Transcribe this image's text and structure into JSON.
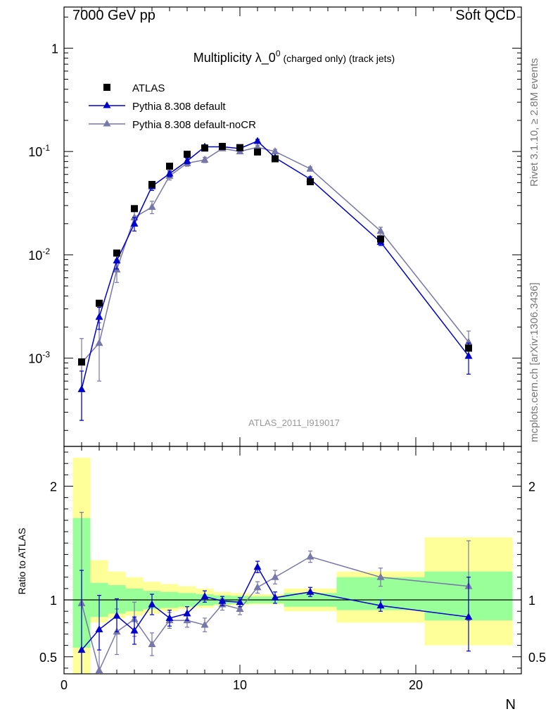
{
  "header": {
    "left": "7000 GeV pp",
    "right": "Soft QCD"
  },
  "side": {
    "top": "Rivet 3.1.10, ≥ 2.8M events",
    "bottom": "mcplots.cern.ch [arXiv:1306.3436]"
  },
  "chart_data": [
    {
      "type": "scatter",
      "title_main": "Multiplicity λ_0",
      "title_sup": "0",
      "title_small": "(charged only) (track jets)",
      "watermark": "ATLAS_2011_I919017",
      "xlabel": "N",
      "ylabel": "",
      "y_scale": "log",
      "xlim": [
        0,
        26
      ],
      "ylim": [
        0.00014,
        2.5
      ],
      "y_tick_labels": [
        "10^-3",
        "10^-2",
        "10^-1",
        "1"
      ],
      "legend_position": "top-left",
      "series": [
        {
          "name": "ATLAS",
          "color": "#000000",
          "marker": "square",
          "x": [
            1,
            2,
            3,
            4,
            5,
            6,
            7,
            8,
            9,
            10,
            11,
            12,
            14,
            18,
            23
          ],
          "y": [
            0.00092,
            0.0034,
            0.0104,
            0.028,
            0.048,
            0.072,
            0.094,
            0.108,
            0.112,
            0.109,
            0.099,
            0.085,
            0.051,
            0.0142,
            0.00125
          ]
        },
        {
          "name": "Pythia 8.308 default",
          "color": "#0000cc",
          "marker": "triangle",
          "x": [
            1,
            2,
            3,
            4,
            5,
            6,
            7,
            8,
            9,
            10,
            11,
            12,
            14,
            18,
            23
          ],
          "y": [
            0.0005,
            0.0025,
            0.0088,
            0.02,
            0.046,
            0.061,
            0.081,
            0.111,
            0.111,
            0.107,
            0.126,
            0.087,
            0.054,
            0.0133,
            0.00105
          ],
          "err": [
            0.00025,
            0.0006,
            0.0015,
            0.003,
            0.004,
            0.004,
            0.005,
            0.005,
            0.004,
            0.004,
            0.005,
            0.004,
            0.003,
            0.001,
            0.00035
          ]
        },
        {
          "name": "Pythia 8.308 default-noCR",
          "color": "#7777aa",
          "marker": "triangle",
          "x": [
            1,
            2,
            3,
            4,
            5,
            6,
            7,
            8,
            9,
            10,
            11,
            12,
            14,
            18,
            23
          ],
          "y": [
            0.0009,
            0.0014,
            0.0072,
            0.023,
            0.029,
            0.058,
            0.077,
            0.083,
            0.107,
            0.1,
            0.11,
            0.1,
            0.068,
            0.017,
            0.00143
          ],
          "err": [
            0.00065,
            0.0008,
            0.0018,
            0.004,
            0.004,
            0.005,
            0.005,
            0.005,
            0.005,
            0.005,
            0.005,
            0.005,
            0.003,
            0.0015,
            0.0004
          ]
        }
      ]
    },
    {
      "type": "scatter",
      "xlabel": "N",
      "ylabel": "Ratio to ATLAS",
      "xlim": [
        0,
        26
      ],
      "ylim": [
        0.35,
        2.35
      ],
      "y_tick_labels": [
        "0.5",
        "1",
        "2"
      ],
      "x_tick_labels": [
        "0",
        "10",
        "20"
      ],
      "bands": {
        "edges": [
          0.5,
          1.5,
          2.5,
          3.5,
          4.5,
          5.5,
          6.5,
          7.5,
          8.5,
          9.5,
          10.5,
          11.5,
          12.5,
          15.5,
          20.5,
          25.5
        ],
        "inner_lo": [
          0.58,
          0.85,
          0.88,
          0.9,
          0.92,
          0.93,
          0.94,
          0.95,
          0.96,
          0.965,
          0.97,
          0.97,
          0.94,
          0.91,
          0.82
        ],
        "inner_hi": [
          1.72,
          1.15,
          1.13,
          1.1,
          1.08,
          1.07,
          1.06,
          1.05,
          1.04,
          1.035,
          1.03,
          1.03,
          1.06,
          1.2,
          1.25
        ],
        "outer_lo": [
          0.3,
          0.8,
          0.84,
          0.86,
          0.88,
          0.9,
          0.92,
          0.93,
          0.95,
          0.955,
          0.96,
          0.96,
          0.9,
          0.8,
          0.6
        ],
        "outer_hi": [
          2.25,
          1.35,
          1.25,
          1.2,
          1.16,
          1.14,
          1.12,
          1.1,
          1.07,
          1.06,
          1.05,
          1.05,
          1.1,
          1.25,
          1.55
        ],
        "inner_color": "#99ff99",
        "outer_color": "#ffff99"
      },
      "series": [
        {
          "name": "Pythia 8.308 default",
          "color": "#0000cc",
          "x": [
            1,
            2,
            3,
            4,
            5,
            6,
            7,
            8,
            9,
            10,
            11,
            12,
            14,
            18,
            23
          ],
          "y": [
            0.56,
            0.74,
            0.86,
            0.73,
            0.96,
            0.84,
            0.88,
            1.03,
            0.99,
            0.98,
            1.29,
            1.02,
            1.07,
            0.95,
            0.85
          ],
          "err_lo": [
            0.3,
            0.18,
            0.14,
            0.12,
            0.09,
            0.07,
            0.06,
            0.05,
            0.04,
            0.04,
            0.05,
            0.05,
            0.04,
            0.05,
            0.3
          ],
          "err_hi": [
            0.7,
            0.3,
            0.15,
            0.12,
            0.09,
            0.07,
            0.06,
            0.05,
            0.04,
            0.04,
            0.05,
            0.05,
            0.04,
            0.05,
            0.35
          ]
        },
        {
          "name": "Pythia 8.308 default-noCR",
          "color": "#7777aa",
          "x": [
            1,
            2,
            3,
            4,
            5,
            6,
            7,
            8,
            9,
            10,
            11,
            12,
            14,
            18,
            23
          ],
          "y": [
            0.97,
            0.38,
            0.72,
            0.83,
            0.61,
            0.82,
            0.82,
            0.78,
            0.96,
            0.92,
            1.11,
            1.2,
            1.38,
            1.2,
            1.12
          ],
          "err_lo": [
            0.65,
            0.3,
            0.2,
            0.15,
            0.1,
            0.07,
            0.06,
            0.06,
            0.05,
            0.05,
            0.05,
            0.06,
            0.05,
            0.08,
            0.3
          ],
          "err_hi": [
            0.8,
            0.35,
            0.2,
            0.15,
            0.1,
            0.07,
            0.06,
            0.06,
            0.05,
            0.05,
            0.05,
            0.06,
            0.05,
            0.08,
            0.4
          ]
        }
      ]
    }
  ]
}
